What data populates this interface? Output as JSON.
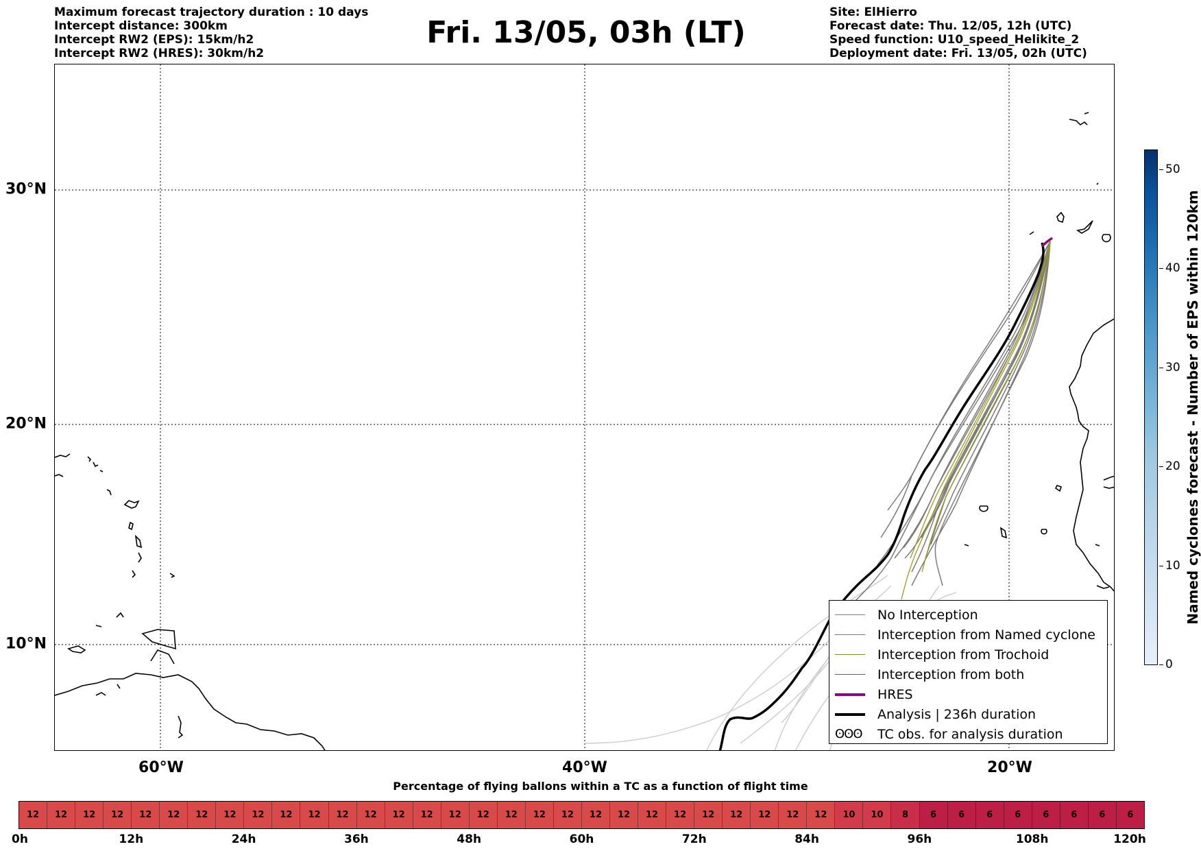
{
  "header_left": [
    "Maximum forecast trajectory duration : 10 days",
    "Intercept distance: 300km",
    "Intercept RW2 (EPS):  15km/h2",
    "Intercept RW2 (HRES): 30km/h2"
  ],
  "title": "Fri. 13/05, 03h (LT)",
  "header_right": [
    "Site: ElHierro",
    "Forecast date: Thu. 12/05, 12h (UTC)",
    "Speed function: U10_speed_Helikite_2",
    "Deployment date: Fri. 13/05, 02h (UTC)"
  ],
  "map": {
    "lat_labels": [
      "30°N",
      "20°N",
      "10°N"
    ],
    "lon_labels": [
      "60°W",
      "40°W",
      "20°W"
    ],
    "extent": {
      "lon": [
        -65,
        -15
      ],
      "lat": [
        5.3,
        34.6
      ]
    }
  },
  "legend": {
    "items": [
      {
        "label": "No Interception",
        "color": "#808080"
      },
      {
        "label": "Interception from Named cyclone",
        "color": "#e8552a"
      },
      {
        "label": "Interception from Trochoid",
        "color": "#8f8a1f"
      },
      {
        "label": "Interception from both",
        "color": "#2a8a2a"
      },
      {
        "label": "HRES",
        "color": "#8b0a7a"
      },
      {
        "label": "Analysis | 236h duration",
        "color": "#000000"
      }
    ],
    "obs_glyph": "ʘʘʘ",
    "obs_label": "TC obs. for analysis duration"
  },
  "colorbar": {
    "title": "Named cyclones forecast - Number of EPS within 120km",
    "min": 0,
    "max": 52,
    "ticks": [
      "0",
      "10",
      "20",
      "30",
      "40",
      "50"
    ]
  },
  "strip": {
    "title": "Percentage of flying ballons within a TC as a function of flight time",
    "values": [
      "12",
      "12",
      "12",
      "12",
      "12",
      "12",
      "12",
      "12",
      "12",
      "12",
      "12",
      "12",
      "12",
      "12",
      "12",
      "12",
      "12",
      "12",
      "12",
      "12",
      "12",
      "12",
      "12",
      "12",
      "12",
      "12",
      "12",
      "12",
      "12",
      "10",
      "10",
      "8",
      "6",
      "6",
      "6",
      "6",
      "6",
      "6",
      "6",
      "6"
    ],
    "hour_labels": [
      "0h",
      "12h",
      "24h",
      "36h",
      "48h",
      "60h",
      "72h",
      "84h",
      "96h",
      "108h",
      "120h"
    ],
    "colors": {
      "12": "#d84a4a",
      "10": "#d23c4a",
      "8": "#c92e48",
      "6": "#bd1e45"
    }
  }
}
